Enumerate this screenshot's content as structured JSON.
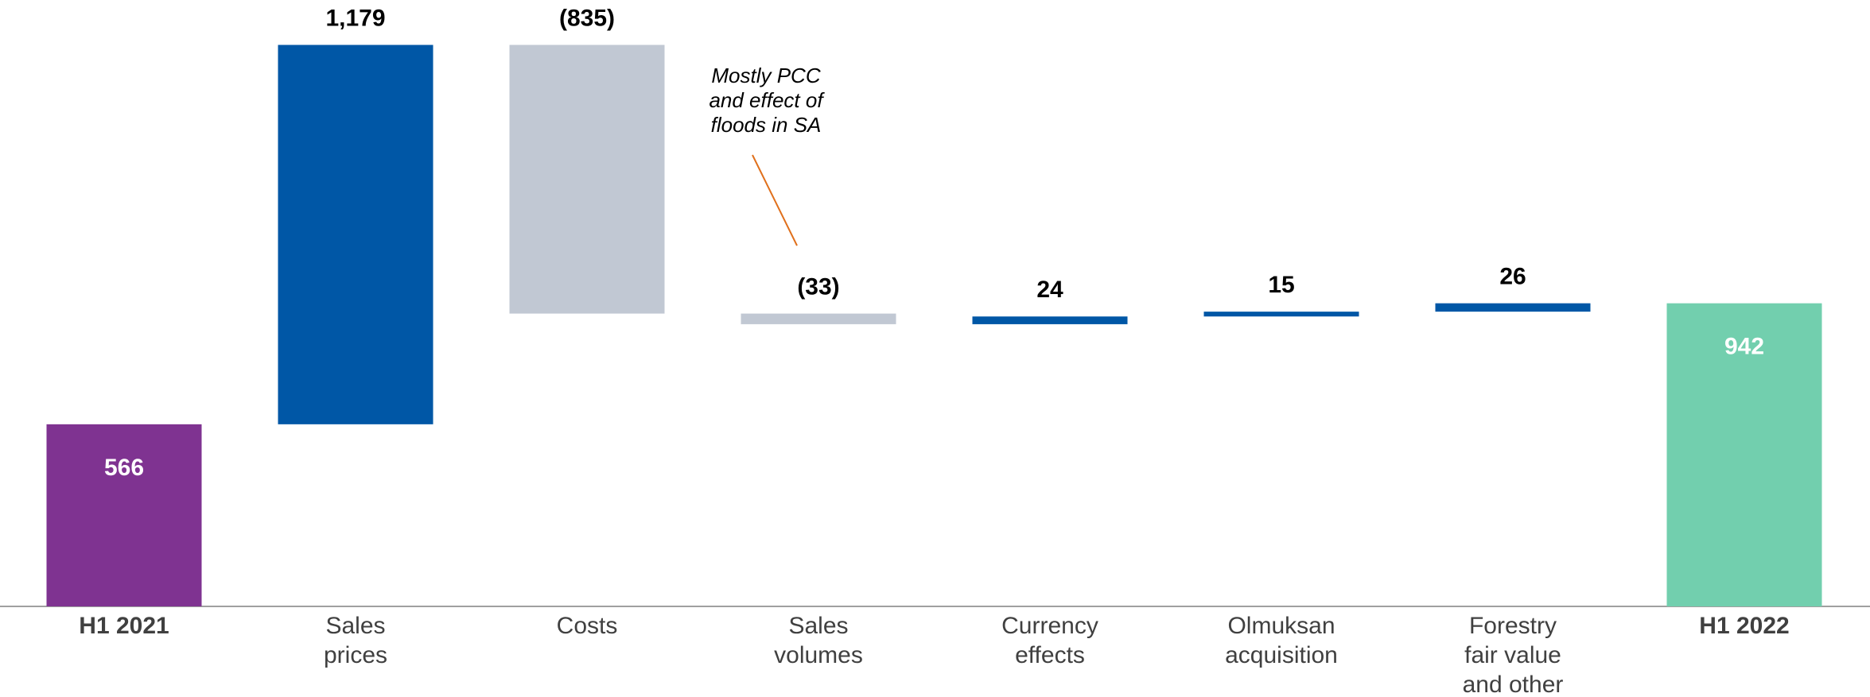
{
  "chart_data": {
    "type": "waterfall",
    "categories": [
      "H1 2021",
      "Sales\nprices",
      "Costs",
      "Sales\nvolumes",
      "Currency\neffects",
      "Olmuksan\nacquisition",
      "Forestry\nfair value\nand other",
      "H1 2022"
    ],
    "values": [
      566,
      1179,
      -835,
      -33,
      24,
      15,
      26,
      942
    ],
    "value_labels": [
      "566",
      "1,179",
      "(835)",
      "(33)",
      "24",
      "15",
      "26",
      "942"
    ],
    "measure": [
      "absolute",
      "relative",
      "relative",
      "relative",
      "relative",
      "relative",
      "relative",
      "absolute"
    ],
    "colors": [
      "#7f3391",
      "#0057a6",
      "#c1c8d3",
      "#c1c8d3",
      "#0057a6",
      "#0057a6",
      "#0057a6",
      "#72cfae"
    ],
    "ylim": [
      0,
      1850
    ],
    "annotation": "Mostly PCC\nand effect of\nfloods in SA"
  }
}
